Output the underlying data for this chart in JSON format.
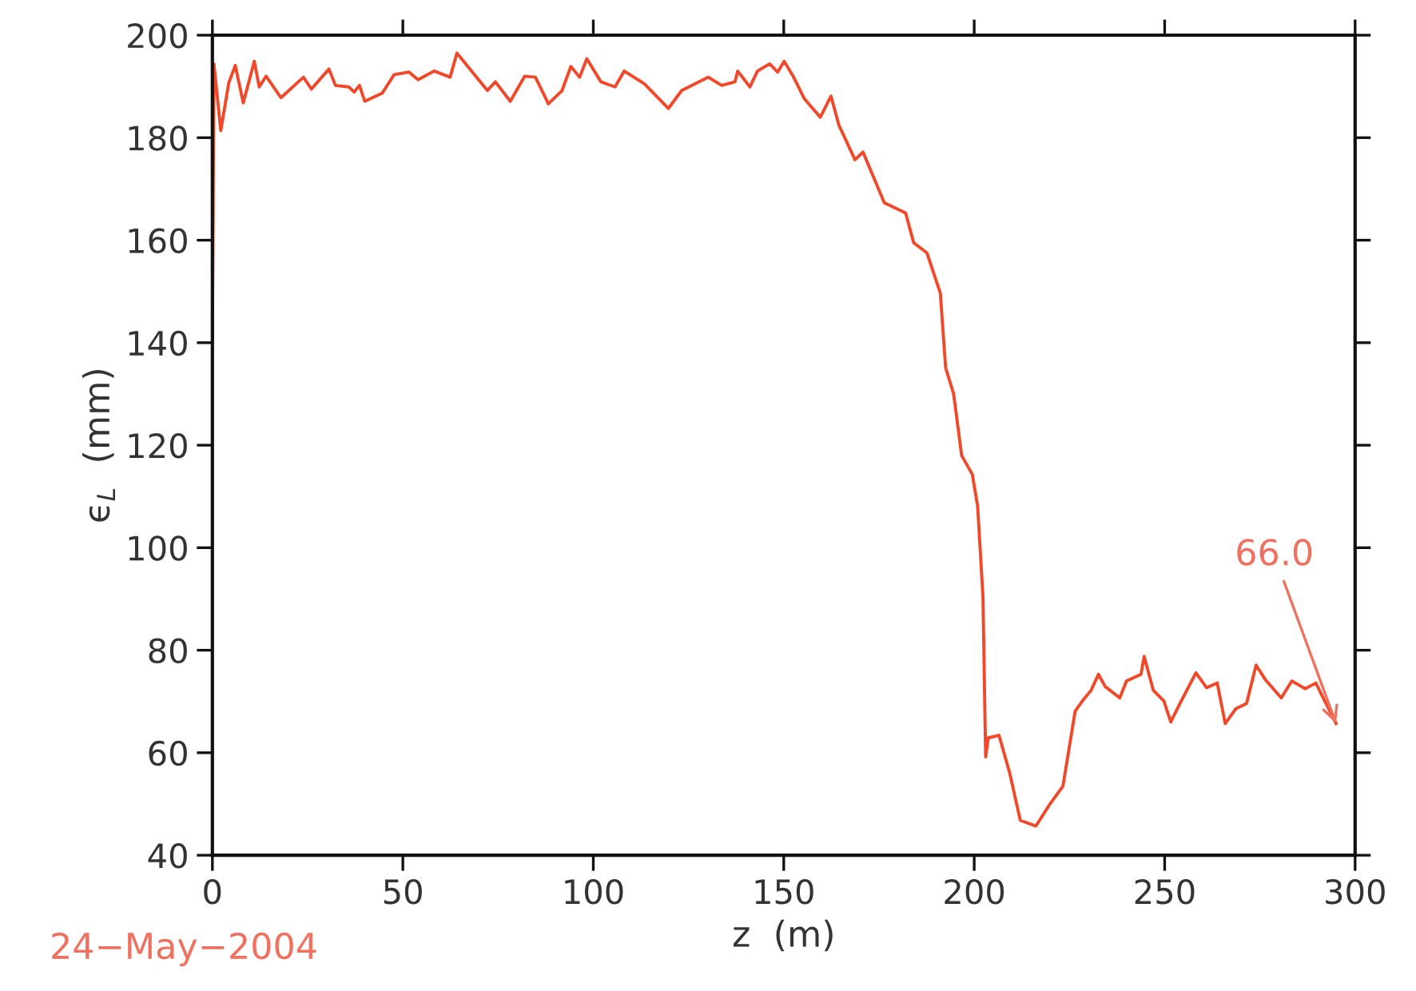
{
  "chart_data": {
    "type": "line",
    "xlabel": "z  (m)",
    "ylabel": "ϵ$_{L}$  (mm)",
    "x": [
      0,
      0.4,
      2.2,
      4.3,
      6.0,
      8.1,
      11.0,
      12.3,
      14.1,
      18.0,
      23.9,
      26.0,
      30.6,
      32.3,
      35.8,
      37.2,
      38.6,
      40.0,
      44.6,
      47.7,
      51.6,
      54.0,
      58.2,
      62.4,
      64.2,
      72.2,
      74.3,
      78.2,
      82.0,
      84.8,
      88.2,
      91.8,
      94.1,
      96.4,
      98.3,
      102.0,
      105.7,
      108.1,
      113.4,
      119.7,
      123.2,
      130.2,
      133.7,
      137.2,
      137.9,
      141.1,
      143.1,
      146.3,
      148.4,
      150.1,
      152.6,
      155.4,
      159.6,
      162.4,
      164.5,
      168.7,
      170.8,
      176.4,
      182.0,
      184.1,
      187.6,
      191.1,
      192.5,
      194.6,
      196.7,
      199.5,
      200.9,
      202.3,
      203.0,
      203.7,
      206.5,
      209.3,
      212.1,
      216.2,
      219.8,
      223.3,
      226.5,
      228.4,
      230.7,
      232.6,
      234.4,
      238.2,
      240.0,
      243.8,
      244.6,
      247.0,
      249.8,
      251.6,
      254.0,
      258.2,
      261.0,
      263.8,
      265.9,
      268.7,
      271.5,
      274.0,
      276.4,
      280.6,
      283.4,
      286.9,
      289.7,
      291.8,
      293.2,
      295.0
    ],
    "series": [
      {
        "color": "#f04828",
        "values": [
          140,
          194.4,
          181.4,
          190.7,
          194.1,
          186.8,
          194.9,
          189.9,
          192.0,
          187.8,
          191.8,
          189.5,
          193.4,
          190.2,
          189.9,
          188.9,
          190.2,
          187.1,
          188.7,
          192.3,
          192.8,
          191.3,
          193.0,
          191.8,
          196.5,
          189.2,
          190.9,
          187.1,
          192.0,
          191.8,
          186.6,
          189.2,
          193.9,
          191.8,
          195.4,
          190.9,
          189.9,
          193.0,
          190.5,
          185.7,
          189.2,
          191.8,
          190.2,
          190.9,
          193.0,
          189.9,
          193.0,
          194.4,
          192.8,
          194.9,
          191.8,
          187.6,
          184.0,
          188.1,
          182.4,
          175.7,
          177.2,
          167.3,
          165.3,
          159.5,
          157.5,
          149.7,
          135.1,
          130.0,
          118.0,
          114.3,
          108.1,
          90.4,
          59.2,
          62.9,
          63.4,
          56.1,
          46.8,
          45.7,
          49.9,
          53.5,
          68.1,
          70.1,
          72.2,
          75.3,
          72.9,
          70.7,
          74.0,
          75.3,
          78.8,
          72.2,
          70.1,
          66.0,
          69.6,
          75.6,
          72.7,
          73.6,
          65.7,
          68.6,
          69.6,
          77.1,
          74.3,
          70.7,
          74.0,
          72.5,
          73.6,
          70.4,
          68.4,
          65.7
        ]
      }
    ],
    "xlim": [
      0,
      300
    ],
    "xticks": [
      0,
      50,
      100,
      150,
      200,
      250,
      300
    ],
    "ylim": [
      40,
      200
    ],
    "yticks": [
      40,
      60,
      80,
      100,
      120,
      140,
      160,
      180,
      200
    ],
    "grid": false,
    "legend": false,
    "marker": "none",
    "line_style": "solid",
    "annotations": [
      {
        "text": "66.0",
        "x": 295.0,
        "y": 65.7
      },
      "24−May−2004"
    ]
  }
}
